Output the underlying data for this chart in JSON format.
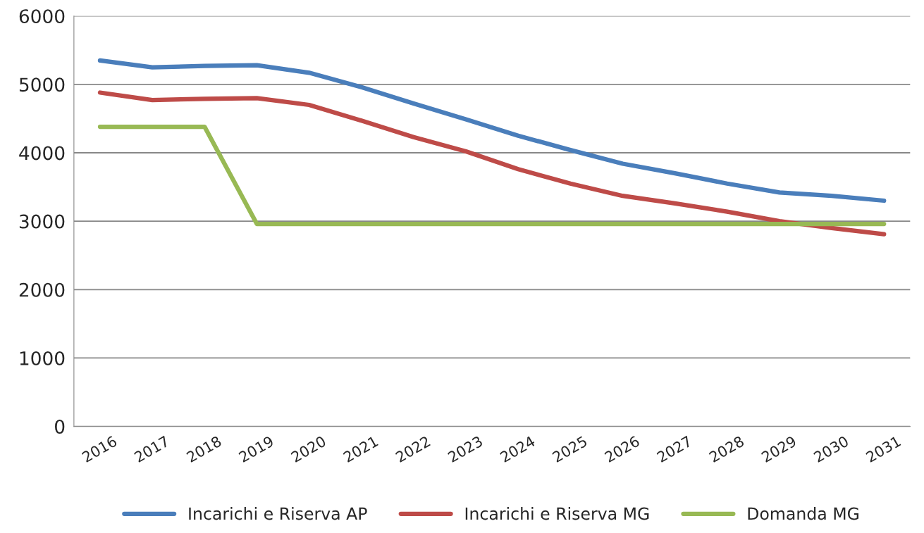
{
  "chart_data": {
    "type": "line",
    "categories": [
      "2016",
      "2017",
      "2018",
      "2019",
      "2020",
      "2021",
      "2022",
      "2023",
      "2024",
      "2025",
      "2026",
      "2027",
      "2028",
      "2029",
      "2030",
      "2031"
    ],
    "series": [
      {
        "name": "Incarichi e Riserva AP",
        "color": "#4a7ebb",
        "values": [
          5350,
          5250,
          5270,
          5280,
          5170,
          4960,
          4720,
          4490,
          4250,
          4040,
          3840,
          3700,
          3550,
          3420,
          3370,
          3300
        ]
      },
      {
        "name": "Incarichi e Riserva MG",
        "color": "#be4b48",
        "values": [
          4880,
          4770,
          4790,
          4800,
          4700,
          4470,
          4230,
          4020,
          3760,
          3550,
          3370,
          3260,
          3140,
          3000,
          2900,
          2810
        ]
      },
      {
        "name": "Domanda MG",
        "color": "#98b954",
        "values": [
          4380,
          4380,
          4380,
          2960,
          2960,
          2960,
          2960,
          2960,
          2960,
          2960,
          2960,
          2960,
          2960,
          2960,
          2960,
          2960
        ]
      }
    ],
    "ylim": [
      0,
      6000
    ],
    "yticks": [
      0,
      1000,
      2000,
      3000,
      4000,
      5000,
      6000
    ],
    "grid": "y",
    "legend": "bottom",
    "marker": "none",
    "line_style": "solid"
  }
}
